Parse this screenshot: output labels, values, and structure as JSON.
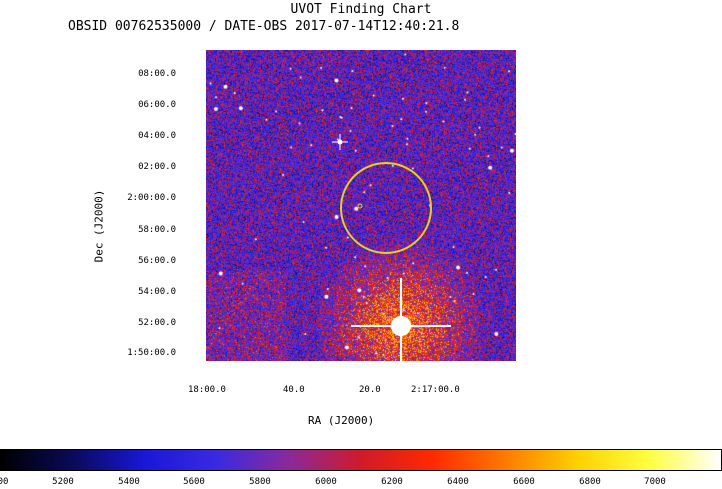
{
  "title": "UVOT Finding Chart",
  "subtitle": "OBSID 00762535000 / DATE-OBS 2017-07-14T12:40:21.8",
  "dec_ticks": [
    "08:00.0",
    "06:00.0",
    "04:00.0",
    "02:00.0",
    "2:00:00.0",
    "58:00.0",
    "56:00.0",
    "54:00.0",
    "52:00.0",
    "1:50:00.0"
  ],
  "ra_ticks": [
    "18:00.0",
    "40.0",
    "20.0",
    "2:17:00.0"
  ],
  "xlabel": "RA (J2000)",
  "ylabel": "Dec (J2000)",
  "colorbar": {
    "ticks": [
      "00",
      "5200",
      "5400",
      "5600",
      "5800",
      "6000",
      "6200",
      "6400",
      "6600",
      "6800",
      "7000"
    ],
    "colors": [
      "#000000",
      "#0a0a5a",
      "#1818d8",
      "#3a2ae0",
      "#8a2a9a",
      "#d01a2a",
      "#ff2a00",
      "#ff7a00",
      "#ffd000",
      "#ffff40",
      "#ffffff"
    ]
  },
  "region_color": "#e8d020"
}
